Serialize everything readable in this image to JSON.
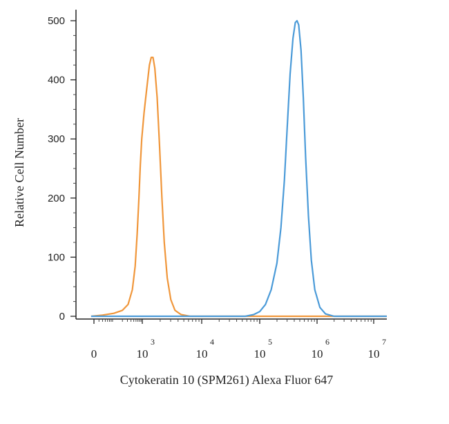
{
  "chart_data": {
    "type": "line",
    "title": "",
    "xlabel": "Cytokeratin 10 (SPM261) Alexa Fluor 647",
    "ylabel": "Relative Cell Number",
    "x_scale": "log",
    "x_tick_labels": [
      {
        "base": "0",
        "exp": ""
      },
      {
        "base": "10",
        "exp": "3"
      },
      {
        "base": "10",
        "exp": "4"
      },
      {
        "base": "10",
        "exp": "5"
      },
      {
        "base": "10",
        "exp": "6"
      },
      {
        "base": "10",
        "exp": "7"
      }
    ],
    "y_ticks": [
      0,
      100,
      200,
      300,
      400,
      500
    ],
    "ylim": [
      0,
      520
    ],
    "grid": false,
    "series": [
      {
        "color": "#f0963a",
        "points": [
          [
            1.2,
            0
          ],
          [
            1.6,
            2
          ],
          [
            2.0,
            5
          ],
          [
            2.3,
            10
          ],
          [
            2.5,
            20
          ],
          [
            2.65,
            45
          ],
          [
            2.75,
            85
          ],
          [
            2.82,
            140
          ],
          [
            2.88,
            200
          ],
          [
            2.93,
            255
          ],
          [
            2.98,
            300
          ],
          [
            3.03,
            345
          ],
          [
            3.08,
            390
          ],
          [
            3.12,
            425
          ],
          [
            3.15,
            438
          ],
          [
            3.18,
            438
          ],
          [
            3.21,
            420
          ],
          [
            3.25,
            370
          ],
          [
            3.29,
            290
          ],
          [
            3.33,
            200
          ],
          [
            3.37,
            125
          ],
          [
            3.42,
            65
          ],
          [
            3.48,
            28
          ],
          [
            3.55,
            10
          ],
          [
            3.65,
            3
          ],
          [
            3.8,
            0
          ],
          [
            7.3,
            0
          ]
        ]
      },
      {
        "color": "#4a9ad8",
        "points": [
          [
            1.2,
            0
          ],
          [
            4.75,
            0
          ],
          [
            4.9,
            3
          ],
          [
            5.0,
            8
          ],
          [
            5.1,
            20
          ],
          [
            5.2,
            45
          ],
          [
            5.3,
            90
          ],
          [
            5.37,
            150
          ],
          [
            5.43,
            230
          ],
          [
            5.48,
            320
          ],
          [
            5.53,
            410
          ],
          [
            5.58,
            470
          ],
          [
            5.62,
            497
          ],
          [
            5.65,
            500
          ],
          [
            5.68,
            493
          ],
          [
            5.72,
            450
          ],
          [
            5.76,
            370
          ],
          [
            5.8,
            270
          ],
          [
            5.85,
            170
          ],
          [
            5.9,
            95
          ],
          [
            5.96,
            45
          ],
          [
            6.05,
            15
          ],
          [
            6.15,
            4
          ],
          [
            6.3,
            0
          ],
          [
            7.3,
            0
          ]
        ]
      }
    ]
  }
}
